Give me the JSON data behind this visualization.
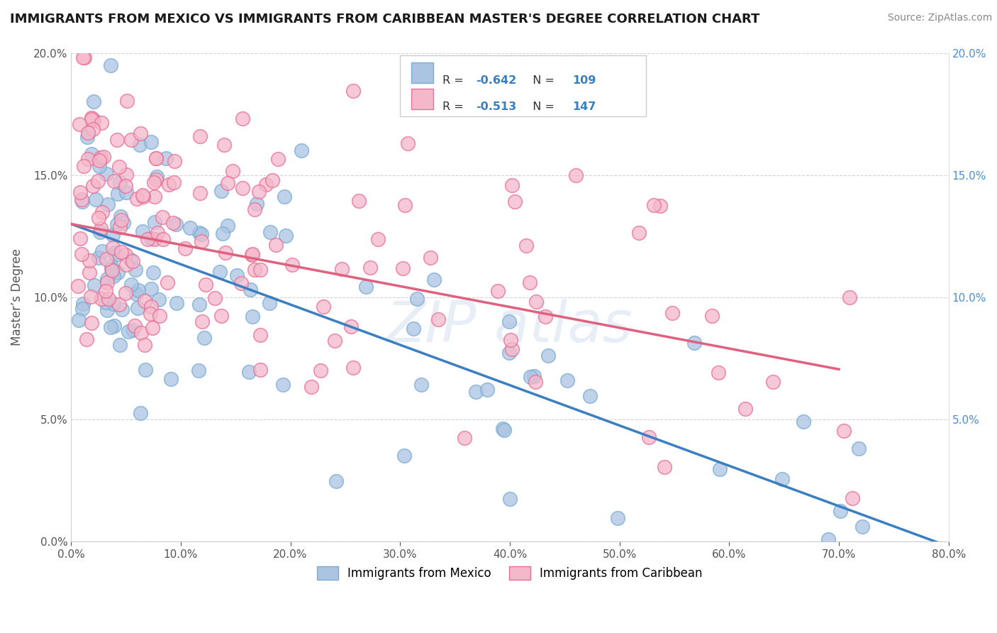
{
  "title": "IMMIGRANTS FROM MEXICO VS IMMIGRANTS FROM CARIBBEAN MASTER'S DEGREE CORRELATION CHART",
  "source": "Source: ZipAtlas.com",
  "ylabel": "Master’s Degree",
  "xlim": [
    0.0,
    0.8
  ],
  "ylim": [
    0.0,
    0.2
  ],
  "mexico_color": "#aac4e2",
  "mexico_edge_color": "#7aadd4",
  "caribbean_color": "#f5b8cb",
  "caribbean_edge_color": "#e87095",
  "mexico_line_color": "#3a7fc1",
  "caribbean_line_color": "#e06080",
  "legend_mexico_R": "-0.642",
  "legend_mexico_N": "109",
  "legend_caribbean_R": "-0.513",
  "legend_caribbean_N": "147",
  "legend_label_mexico": "Immigrants from Mexico",
  "legend_label_caribbean": "Immigrants from Caribbean",
  "legend_R_color": "#333333",
  "legend_val_color": "#3a7fc1",
  "background_color": "#ffffff",
  "grid_color": "#c8c8c8",
  "right_axis_color": "#4a90d9",
  "watermark_text": "ZIP atlas",
  "watermark_color": "#e8eef5"
}
